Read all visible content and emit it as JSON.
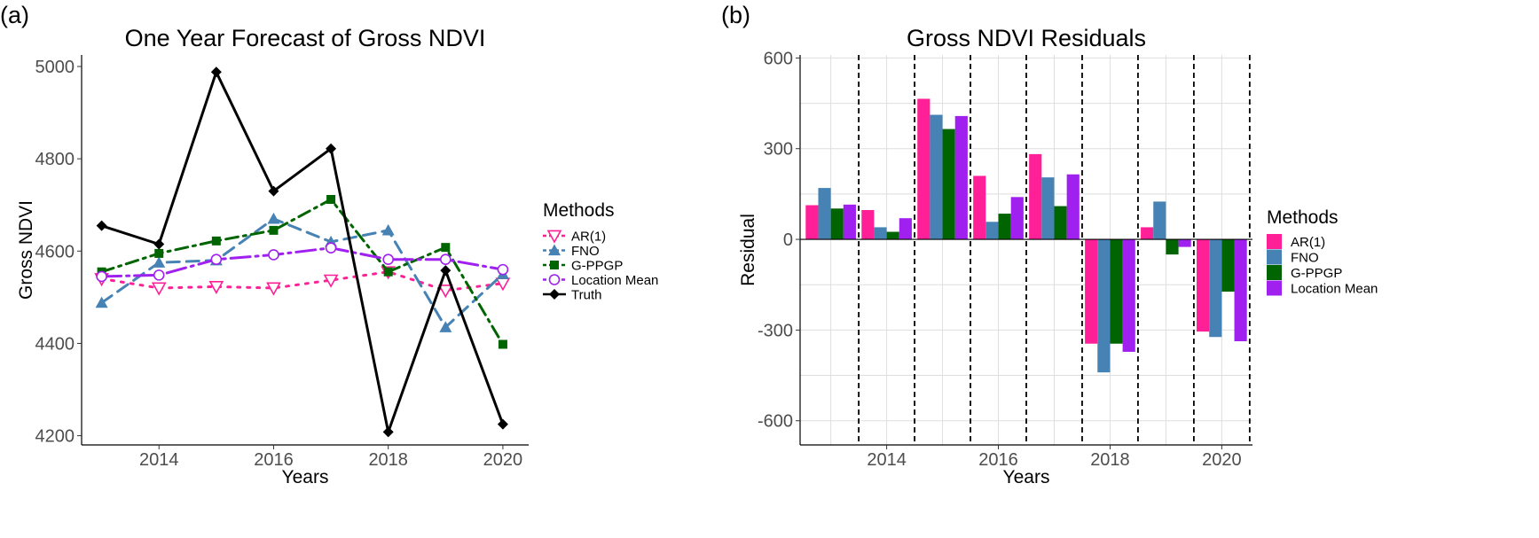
{
  "panels": {
    "left_label": "(a)",
    "right_label": "(b)"
  },
  "chart_data": [
    {
      "type": "line",
      "title": "One Year Forecast of Gross NDVI",
      "xlabel": "Years",
      "ylabel": "Gross NDVI",
      "x": [
        2013,
        2014,
        2015,
        2016,
        2017,
        2018,
        2019,
        2020
      ],
      "xticks": [
        2014,
        2016,
        2018,
        2020
      ],
      "yticks": [
        4200,
        4400,
        4600,
        4800,
        5000
      ],
      "xlim": [
        2012.65,
        2020.45
      ],
      "ylim": [
        4180,
        5025
      ],
      "legend_title": "Methods",
      "series": [
        {
          "name": "AR(1)",
          "color": "#ff1f96",
          "dash": "dot",
          "marker": "triangle-down-open",
          "values": [
            4540,
            4520,
            4523,
            4520,
            4537,
            4555,
            4515,
            4530
          ]
        },
        {
          "name": "FNO",
          "color": "#4682b4",
          "dash": "dash",
          "marker": "triangle",
          "values": [
            4488,
            4575,
            4580,
            4670,
            4620,
            4645,
            4435,
            4550
          ]
        },
        {
          "name": "G-PPGP",
          "color": "#006400",
          "dash": "dashdot",
          "marker": "square",
          "values": [
            4555,
            4595,
            4622,
            4645,
            4712,
            4555,
            4608,
            4398
          ]
        },
        {
          "name": "Location Mean",
          "color": "#a020f0",
          "dash": "longdashdot",
          "marker": "circle-open",
          "values": [
            4545,
            4548,
            4582,
            4592,
            4607,
            4582,
            4582,
            4560
          ]
        },
        {
          "name": "Truth",
          "color": "#000000",
          "dash": "solid",
          "marker": "diamond",
          "values": [
            4655,
            4615,
            4988,
            4730,
            4822,
            4208,
            4558,
            4225
          ]
        }
      ]
    },
    {
      "type": "bar",
      "title": "Gross NDVI Residuals",
      "xlabel": "Years",
      "ylabel": "Residual",
      "categories": [
        2013,
        2014,
        2015,
        2016,
        2017,
        2018,
        2019,
        2020
      ],
      "xticks": [
        2014,
        2016,
        2018,
        2020
      ],
      "yticks": [
        -600,
        -300,
        0,
        300,
        600
      ],
      "ylim": [
        -680,
        610
      ],
      "xlim": [
        2012.45,
        2020.55
      ],
      "dashed_separators": [
        2013.5,
        2014.5,
        2015.5,
        2016.5,
        2017.5,
        2018.5,
        2019.5,
        2020.5
      ],
      "legend_title": "Methods",
      "series": [
        {
          "name": "AR(1)",
          "color": "#ff1f96",
          "values": [
            113,
            97,
            465,
            210,
            282,
            -345,
            40,
            -305
          ]
        },
        {
          "name": "FNO",
          "color": "#4682b4",
          "values": [
            170,
            40,
            412,
            58,
            205,
            -440,
            125,
            -323
          ]
        },
        {
          "name": "G-PPGP",
          "color": "#006400",
          "values": [
            102,
            25,
            365,
            85,
            110,
            -345,
            -50,
            -173
          ]
        },
        {
          "name": "Location Mean",
          "color": "#a020f0",
          "values": [
            115,
            70,
            408,
            140,
            215,
            -372,
            -25,
            -337
          ]
        }
      ]
    }
  ]
}
